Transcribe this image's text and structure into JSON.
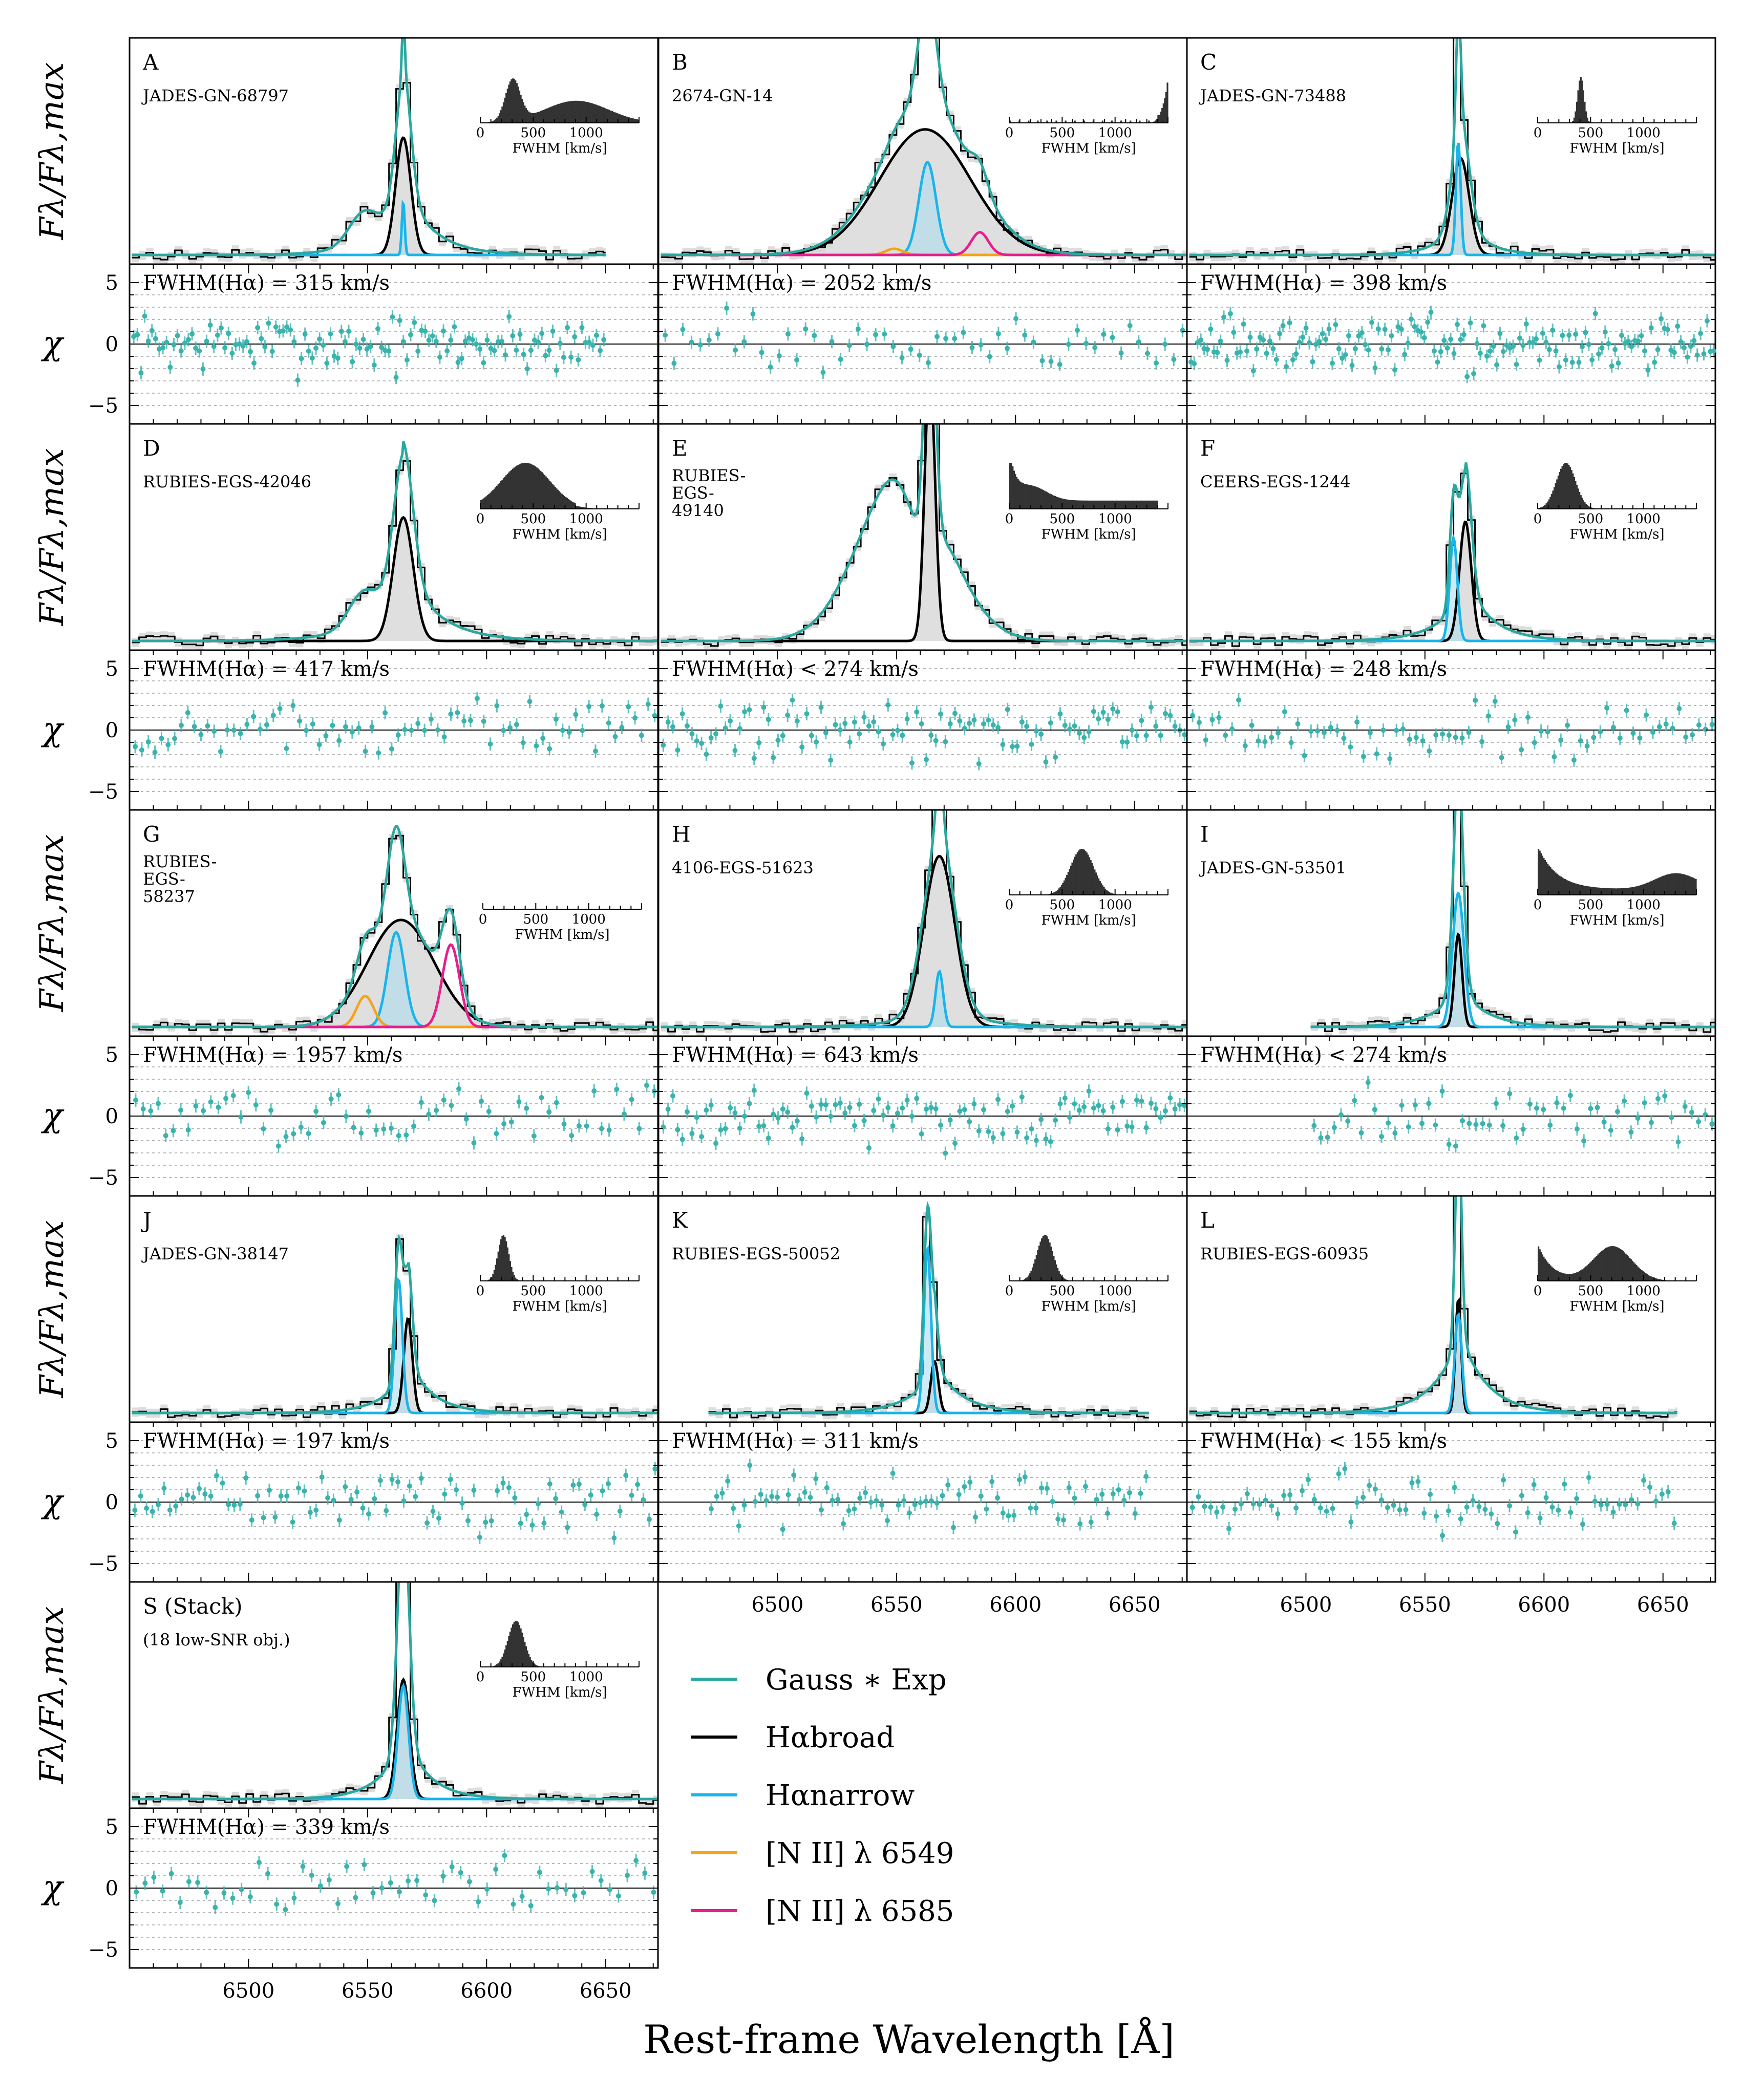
{
  "figure": {
    "xlabel": "Rest-frame Wavelength [Å]",
    "flux_ylabel": "Fλ/Fλ,max",
    "chi_ylabel": "χ",
    "inset_xlabel": "FWHM [km/s]"
  },
  "chart_data": {
    "type": "line",
    "x_ticks": [
      6500,
      6550,
      6600,
      6650
    ],
    "xlim": [
      6450,
      6672
    ],
    "chi_yticks": [
      5,
      0,
      -5
    ],
    "chi_ylim": [
      -6,
      6
    ],
    "inset_ticks": [
      0,
      500,
      1000
    ],
    "inset_xlim": [
      0,
      1500
    ],
    "colors": {
      "model": "#2aa8a0",
      "broad": "#000000",
      "narrow": "#19b4ea",
      "nii6549": "#f5a31b",
      "nii6585": "#e81e8c",
      "residual": "#3ab3ad",
      "broad_fill": "#d4d4d4",
      "narrow_fill": "#aedcef"
    },
    "panels": [
      {
        "letter": "A",
        "name": "JADES-GN-68797",
        "fwhm_label": "FWHM(Hα) = 315 km/s",
        "broad": {
          "c": 6565,
          "a": 0.57,
          "s": 3.2
        },
        "narrow": {
          "c": 6565,
          "a": 0.26,
          "s": 0.6
        },
        "nii": null,
        "wing": {
          "a": 0.33,
          "tau": 12
        },
        "bump": {
          "c": 6548,
          "a": 0.14,
          "s": 6
        },
        "range": [
          6451,
          6650
        ],
        "inset": "bimodal-wide",
        "n_res": 130
      },
      {
        "letter": "B",
        "name": "2674-GN-14",
        "fwhm_label": "FWHM(Hα) = 2052 km/s",
        "broad": {
          "c": 6562,
          "a": 0.61,
          "s": 19
        },
        "narrow": {
          "c": 6563,
          "a": 0.45,
          "s": 3.6
        },
        "nii": [
          0.03,
          0.11
        ],
        "wing": {
          "a": 0.24,
          "tau": 15
        },
        "bump": null,
        "range": [
          6451,
          6672
        ],
        "inset": "edge-high",
        "n_res": 60
      },
      {
        "letter": "C",
        "name": "JADES-GN-73488",
        "fwhm_label": "FWHM(Hα) = 398 km/s",
        "broad": {
          "c": 6565,
          "a": 0.47,
          "s": 3.6
        },
        "narrow": {
          "c": 6564,
          "a": 0.55,
          "s": 1.0
        },
        "nii": null,
        "wing": {
          "a": 0.2,
          "tau": 9
        },
        "bump": null,
        "range": [
          6451,
          6672
        ],
        "inset": "narrow-peak",
        "n_res": 160
      },
      {
        "letter": "D",
        "name": "RUBIES-EGS-42046",
        "fwhm_label": "FWHM(Hα) = 417 km/s",
        "broad": {
          "c": 6565,
          "a": 0.6,
          "s": 4.2
        },
        "narrow": null,
        "nii": null,
        "wing": {
          "a": 0.35,
          "tau": 14
        },
        "bump": {
          "c": 6548,
          "a": 0.15,
          "s": 6
        },
        "range": [
          6451,
          6672
        ],
        "inset": "broad-hump",
        "n_res": 80
      },
      {
        "letter": "E",
        "name": "RUBIES-EGS-49140",
        "fwhm_label": "FWHM(Hα) < 274 km/s",
        "broad": {
          "c": 6564,
          "a": 1.3,
          "s": 2.2
        },
        "narrow": null,
        "nii": null,
        "wing": {
          "a": 0.0,
          "tau": 10
        },
        "bump": {
          "c": 6553,
          "a": 0.85,
          "s": 18
        },
        "absorb": {
          "c": 6560,
          "a": 0.25,
          "s": 6
        },
        "range": [
          6451,
          6672
        ],
        "inset": "peak-zero",
        "n_res": 110
      },
      {
        "letter": "F",
        "name": "CEERS-EGS-1244",
        "fwhm_label": "FWHM(Hα) = 248 km/s",
        "broad": {
          "c": 6567,
          "a": 0.58,
          "s": 2.5
        },
        "narrow": {
          "c": 6562,
          "a": 0.5,
          "s": 1.6
        },
        "nii": null,
        "wing": {
          "a": 0.28,
          "tau": 11
        },
        "bump": null,
        "range": [
          6451,
          6672
        ],
        "inset": "mid-peak",
        "n_res": 80
      },
      {
        "letter": "G",
        "name": "RUBIES-EGS-58237",
        "fwhm_label": "FWHM(Hα) = 1957 km/s",
        "broad": {
          "c": 6564,
          "a": 0.52,
          "s": 14
        },
        "narrow": {
          "c": 6562,
          "a": 0.46,
          "s": 3.6
        },
        "nii": [
          0.15,
          0.4
        ],
        "wing": {
          "a": 0.0,
          "tau": 10
        },
        "bump": null,
        "range": [
          6451,
          6672
        ],
        "inset": "none",
        "n_res": 70
      },
      {
        "letter": "H",
        "name": "4106-EGS-51623",
        "fwhm_label": "FWHM(Hα) = 643 km/s",
        "broad": {
          "c": 6568,
          "a": 0.83,
          "s": 6.5
        },
        "narrow": {
          "c": 6568,
          "a": 0.27,
          "s": 1.6
        },
        "nii": null,
        "wing": {
          "a": 0.12,
          "tau": 14
        },
        "bump": null,
        "range": [
          6451,
          6672
        ],
        "inset": "peak-700",
        "n_res": 110
      },
      {
        "letter": "I",
        "name": "JADES-GN-53501",
        "fwhm_label": "FWHM(Hα) < 274 km/s",
        "broad": {
          "c": 6564,
          "a": 0.45,
          "s": 1.6
        },
        "narrow": {
          "c": 6564,
          "a": 0.65,
          "s": 2.4
        },
        "nii": null,
        "wing": {
          "a": 0.2,
          "tau": 11
        },
        "bump": null,
        "range": [
          6502,
          6672
        ],
        "inset": "bimodal-low",
        "n_res": 60
      },
      {
        "letter": "J",
        "name": "JADES-GN-38147",
        "fwhm_label": "FWHM(Hα) = 197 km/s",
        "broad": {
          "c": 6567,
          "a": 0.46,
          "s": 1.8
        },
        "narrow": {
          "c": 6563,
          "a": 0.65,
          "s": 1.6
        },
        "nii": null,
        "wing": {
          "a": 0.25,
          "tau": 10
        },
        "bump": null,
        "range": [
          6451,
          6672
        ],
        "inset": "narrow-low",
        "n_res": 90
      },
      {
        "letter": "K",
        "name": "RUBIES-EGS-50052",
        "fwhm_label": "FWHM(Hα) = 311 km/s",
        "broad": {
          "c": 6566,
          "a": 0.25,
          "s": 1.6
        },
        "narrow": {
          "c": 6563,
          "a": 0.8,
          "s": 1.5
        },
        "nii": null,
        "wing": {
          "a": 0.23,
          "tau": 11
        },
        "bump": null,
        "range": [
          6471,
          6656
        ],
        "inset": "mid-300",
        "n_res": 80
      },
      {
        "letter": "L",
        "name": "RUBIES-EGS-60935",
        "fwhm_label": "FWHM(Hα) < 155 km/s",
        "broad": {
          "c": 6564,
          "a": 0.55,
          "s": 1.2
        },
        "narrow": {
          "c": 6564,
          "a": 0.48,
          "s": 1.5
        },
        "nii": null,
        "wing": {
          "a": 0.4,
          "tau": 11
        },
        "bump": null,
        "range": [
          6451,
          6656
        ],
        "inset": "bimodal-mid",
        "n_res": 80
      },
      {
        "letter": "S (Stack)",
        "name": "(18 low-SNR obj.)",
        "fwhm_label": "FWHM(Hα) = 339 km/s",
        "broad": {
          "c": 6565,
          "a": 0.58,
          "s": 2.6
        },
        "narrow": {
          "c": 6565,
          "a": 0.55,
          "s": 2.2
        },
        "nii": null,
        "wing": {
          "a": 0.32,
          "tau": 10
        },
        "bump": null,
        "range": [
          6451,
          6672
        ],
        "inset": "mid-300",
        "n_res": 60
      }
    ],
    "legend": [
      {
        "label": "Gauss ∗ Exp",
        "color": "#2aa8a0"
      },
      {
        "label": "Hαbroad",
        "color": "#000000"
      },
      {
        "label": "Hαnarrow",
        "color": "#19b4ea"
      },
      {
        "label": "[N II] λ 6549",
        "color": "#f5a31b"
      },
      {
        "label": "[N II] λ 6585",
        "color": "#e81e8c"
      }
    ]
  }
}
